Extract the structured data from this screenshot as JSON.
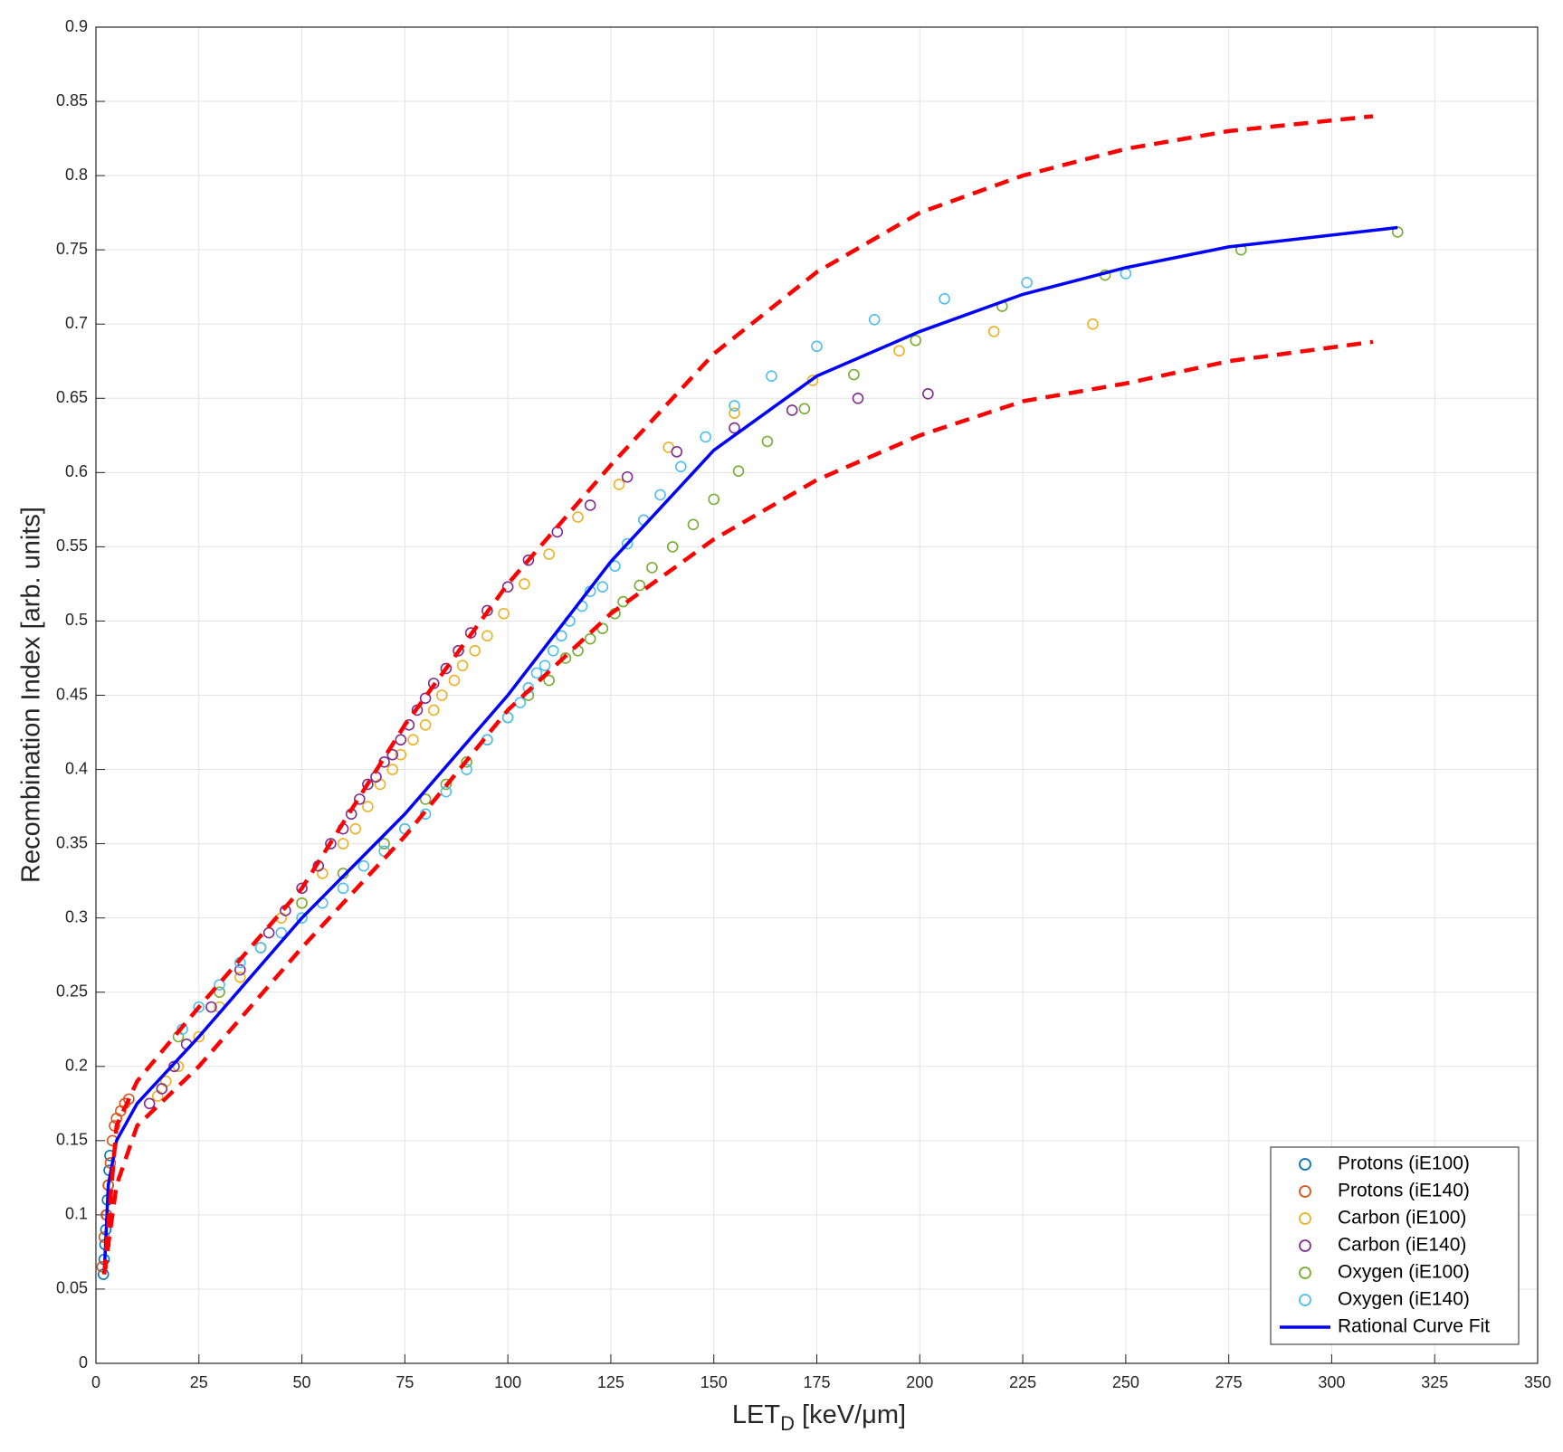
{
  "chart_data": {
    "type": "scatter",
    "xlabel": [
      "LET",
      "D",
      " [keV/μm]"
    ],
    "ylabel": "Recombination Index [arb. units]",
    "xlim": [
      0,
      350
    ],
    "ylim": [
      0,
      0.9
    ],
    "xticks": [
      0,
      25,
      50,
      75,
      100,
      125,
      150,
      175,
      200,
      225,
      250,
      275,
      300,
      325,
      350
    ],
    "yticks": [
      0,
      0.05,
      0.1,
      0.15,
      0.2,
      0.25,
      0.3,
      0.35,
      0.4,
      0.45,
      0.5,
      0.55,
      0.6,
      0.65,
      0.7,
      0.75,
      0.8,
      0.85,
      0.9
    ],
    "grid": true,
    "legend": "southeast",
    "series": [
      {
        "name": "Protons (iE100)",
        "color": "#0072bd",
        "mark": "circle",
        "x": [
          1.8,
          2,
          2.2,
          2.4,
          2.6,
          2.8,
          3,
          3.2,
          3.4
        ],
        "values": [
          0.06,
          0.07,
          0.08,
          0.09,
          0.1,
          0.11,
          0.12,
          0.13,
          0.14
        ]
      },
      {
        "name": "Protons (iE140)",
        "color": "#d95319",
        "mark": "circle",
        "x": [
          1.5,
          2,
          2.5,
          3,
          3.5,
          4,
          4.5,
          5,
          6,
          7,
          8
        ],
        "values": [
          0.065,
          0.085,
          0.1,
          0.12,
          0.135,
          0.15,
          0.16,
          0.165,
          0.17,
          0.175,
          0.178
        ]
      },
      {
        "name": "Carbon (iE100)",
        "color": "#edb120",
        "mark": "circle",
        "x": [
          15,
          17,
          20,
          25,
          30,
          35,
          40,
          45,
          50,
          55,
          60,
          63,
          66,
          69,
          72,
          74,
          77,
          80,
          82,
          84,
          87,
          89,
          92,
          95,
          99,
          104,
          110,
          117,
          127,
          139,
          155,
          174,
          195,
          218,
          242
        ],
        "values": [
          0.18,
          0.19,
          0.2,
          0.22,
          0.24,
          0.26,
          0.28,
          0.3,
          0.31,
          0.33,
          0.35,
          0.36,
          0.375,
          0.39,
          0.4,
          0.41,
          0.42,
          0.43,
          0.44,
          0.45,
          0.46,
          0.47,
          0.48,
          0.49,
          0.505,
          0.525,
          0.545,
          0.57,
          0.592,
          0.617,
          0.64,
          0.662,
          0.682,
          0.695,
          0.7
        ]
      },
      {
        "name": "Carbon (iE140)",
        "color": "#7e2f8e",
        "mark": "circle",
        "x": [
          13,
          16,
          19,
          22,
          28,
          35,
          42,
          46,
          50,
          54,
          57,
          60,
          62,
          64,
          66,
          68,
          70,
          72,
          74,
          76,
          78,
          80,
          82,
          85,
          88,
          91,
          95,
          100,
          105,
          112,
          120,
          129,
          141,
          155,
          169,
          185,
          202
        ],
        "values": [
          0.175,
          0.185,
          0.2,
          0.215,
          0.24,
          0.265,
          0.29,
          0.305,
          0.32,
          0.335,
          0.35,
          0.36,
          0.37,
          0.38,
          0.39,
          0.395,
          0.405,
          0.41,
          0.42,
          0.43,
          0.44,
          0.448,
          0.458,
          0.468,
          0.48,
          0.492,
          0.507,
          0.523,
          0.541,
          0.56,
          0.578,
          0.597,
          0.614,
          0.63,
          0.642,
          0.65,
          0.653
        ]
      },
      {
        "name": "Oxygen (iE100)",
        "color": "#77ac30",
        "mark": "circle",
        "x": [
          20,
          30,
          40,
          50,
          60,
          70,
          75,
          80,
          85,
          90,
          95,
          100,
          105,
          110,
          114,
          117,
          120,
          123,
          126,
          128,
          132,
          135,
          140,
          145,
          150,
          156,
          163,
          172,
          184,
          199,
          220,
          245,
          278,
          316
        ],
        "values": [
          0.22,
          0.25,
          0.28,
          0.31,
          0.33,
          0.35,
          0.36,
          0.38,
          0.39,
          0.405,
          0.42,
          0.435,
          0.45,
          0.46,
          0.475,
          0.48,
          0.488,
          0.495,
          0.505,
          0.513,
          0.524,
          0.536,
          0.55,
          0.565,
          0.582,
          0.601,
          0.621,
          0.643,
          0.666,
          0.689,
          0.712,
          0.733,
          0.75,
          0.762
        ]
      },
      {
        "name": "Oxygen (iE140)",
        "color": "#4dbeee",
        "mark": "circle",
        "x": [
          21,
          25,
          30,
          35,
          40,
          45,
          50,
          55,
          60,
          65,
          70,
          75,
          80,
          85,
          90,
          95,
          100,
          103,
          105,
          107,
          109,
          111,
          113,
          115,
          118,
          120,
          123,
          126,
          129,
          133,
          137,
          142,
          148,
          155,
          164,
          175,
          189,
          206,
          226,
          250
        ],
        "values": [
          0.225,
          0.24,
          0.255,
          0.27,
          0.28,
          0.29,
          0.3,
          0.31,
          0.32,
          0.335,
          0.345,
          0.36,
          0.37,
          0.385,
          0.4,
          0.42,
          0.435,
          0.445,
          0.455,
          0.465,
          0.47,
          0.48,
          0.49,
          0.5,
          0.51,
          0.52,
          0.523,
          0.537,
          0.552,
          0.568,
          0.585,
          0.604,
          0.624,
          0.645,
          0.665,
          0.685,
          0.703,
          0.717,
          0.728,
          0.734
        ]
      },
      {
        "name": "Rational Curve Fit",
        "color": "#0000ff",
        "mark": "line",
        "x": [
          2,
          3,
          5,
          10,
          15,
          20,
          25,
          50,
          75,
          100,
          125,
          150,
          175,
          200,
          225,
          250,
          275,
          316
        ],
        "values": [
          0.06,
          0.12,
          0.15,
          0.175,
          0.19,
          0.205,
          0.22,
          0.3,
          0.37,
          0.45,
          0.54,
          0.615,
          0.665,
          0.695,
          0.72,
          0.738,
          0.752,
          0.765
        ]
      },
      {
        "color": "#ff0000",
        "mark": "dashed",
        "x": [
          2,
          5,
          10,
          25,
          50,
          75,
          100,
          125,
          150,
          175,
          200,
          225,
          250,
          275,
          310
        ],
        "values": [
          0.06,
          0.16,
          0.19,
          0.24,
          0.32,
          0.43,
          0.525,
          0.605,
          0.68,
          0.735,
          0.775,
          0.8,
          0.818,
          0.83,
          0.84
        ]
      },
      {
        "color": "#ff0000",
        "mark": "dashed",
        "x": [
          2,
          5,
          10,
          25,
          50,
          75,
          100,
          125,
          150,
          175,
          200,
          225,
          250,
          275,
          310
        ],
        "values": [
          0.06,
          0.12,
          0.16,
          0.2,
          0.28,
          0.355,
          0.44,
          0.505,
          0.555,
          0.595,
          0.625,
          0.648,
          0.66,
          0.675,
          0.688
        ]
      }
    ]
  }
}
